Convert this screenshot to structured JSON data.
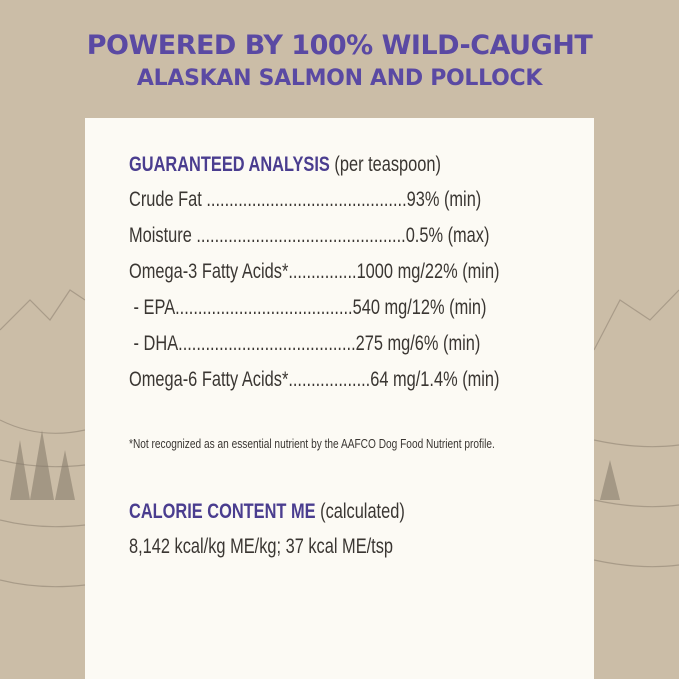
{
  "headline": {
    "line1": "POWERED BY 100% WILD-CAUGHT",
    "line2": "ALASKAN SALMON AND POLLOCK"
  },
  "analysis": {
    "title": "GUARANTEED ANALYSIS",
    "subtitle": "(per teaspoon)",
    "rows": [
      "Crude Fat ............................................93% (min)",
      "Moisture ..............................................0.5% (max)",
      "Omega-3 Fatty Acids*...............1000 mg/22% (min)",
      " - EPA.......................................540 mg/12% (min)",
      " - DHA.......................................275 mg/6% (min)",
      "Omega-6 Fatty Acids*..................64 mg/1.4% (min)"
    ]
  },
  "footnote": "*Not recognized as an essential nutrient by the AAFCO Dog Food Nutrient profile.",
  "calorie": {
    "title": "CALORIE CONTENT ME",
    "subtitle": "(calculated)",
    "value": "8,142 kcal/kg ME/kg; 37 kcal ME/tsp"
  },
  "colors": {
    "accent": "#5a49a3",
    "background": "#cbbda7",
    "card": "#fcfaf4"
  }
}
